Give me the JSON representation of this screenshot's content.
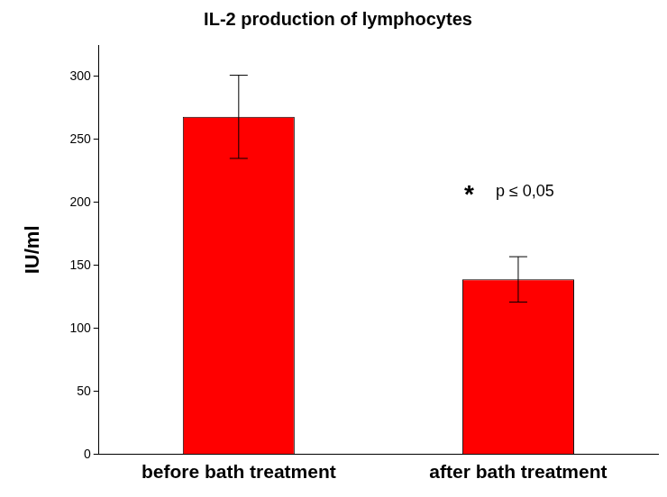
{
  "chart_data": {
    "type": "bar",
    "title": "IL-2 production of lymphocytes",
    "y_label": "IU/ml",
    "categories": [
      "before bath treatment",
      "after bath treatment"
    ],
    "values": [
      268,
      139
    ],
    "errors": [
      33,
      18
    ],
    "color": "#ff0000",
    "ylim": [
      0,
      325
    ],
    "yticks": [
      0,
      50,
      100,
      150,
      200,
      250,
      300
    ],
    "grid": false,
    "annotations": [
      "*",
      "p ≤ 0,05"
    ]
  }
}
